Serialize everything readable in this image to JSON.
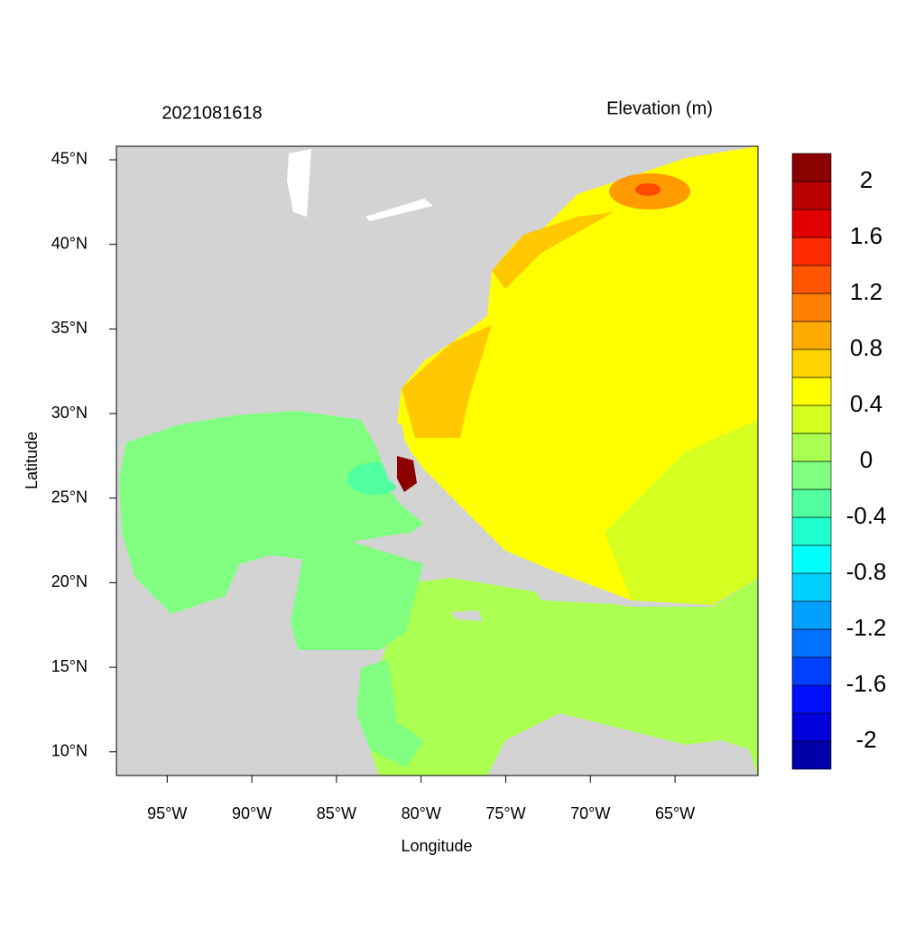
{
  "chart_data": {
    "type": "contour-map",
    "title_left": "2021081618",
    "title_right": "Elevation (m)",
    "x_label": "Longitude",
    "y_label": "Latitude",
    "xlim": [
      -98,
      -60.1
    ],
    "ylim": [
      8.6,
      45.8
    ],
    "xticks": [
      {
        "value": -95,
        "label": "95°W"
      },
      {
        "value": -90,
        "label": "90°W"
      },
      {
        "value": -85,
        "label": "85°W"
      },
      {
        "value": -80,
        "label": "80°W"
      },
      {
        "value": -75,
        "label": "75°W"
      },
      {
        "value": -70,
        "label": "70°W"
      },
      {
        "value": -65,
        "label": "65°W"
      }
    ],
    "yticks": [
      {
        "value": 10,
        "label": "10°N"
      },
      {
        "value": 15,
        "label": "15°N"
      },
      {
        "value": 20,
        "label": "20°N"
      },
      {
        "value": 25,
        "label": "25°N"
      },
      {
        "value": 30,
        "label": "30°N"
      },
      {
        "value": 35,
        "label": "35°N"
      },
      {
        "value": 40,
        "label": "40°N"
      },
      {
        "value": 45,
        "label": "45°N"
      }
    ],
    "colorbar": {
      "lim": [
        -2.2,
        2.2
      ],
      "ticks": [
        -2,
        -1.6,
        -1.2,
        -0.8,
        -0.4,
        0,
        0.4,
        0.8,
        1.2,
        1.6,
        2
      ],
      "colors": [
        "#0000a8",
        "#0000dc",
        "#0010ff",
        "#0040ff",
        "#0070ff",
        "#00a0ff",
        "#00d0ff",
        "#00ffff",
        "#20ffd0",
        "#50ffa0",
        "#80ff80",
        "#aaff50",
        "#d4ff20",
        "#ffff00",
        "#ffd400",
        "#ffaa00",
        "#ff8000",
        "#ff5500",
        "#ff2a00",
        "#e00000",
        "#b80000",
        "#8b0000"
      ]
    }
  }
}
